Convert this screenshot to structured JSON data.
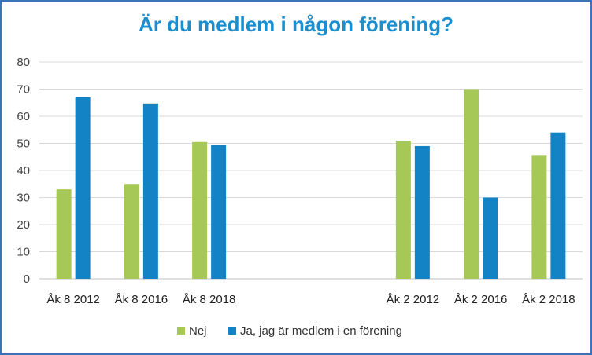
{
  "chart_data": {
    "type": "bar",
    "title": "Är du medlem i någon förening?",
    "categories": [
      "Åk 8 2012",
      "Åk 8 2016",
      "Åk 8 2018",
      "",
      "",
      "Åk 2 2012",
      "Åk 2 2016",
      "Åk 2 2018"
    ],
    "series": [
      {
        "name": "Nej",
        "color": "#a6c856",
        "values": [
          33,
          35,
          50.5,
          null,
          null,
          51,
          70,
          45.7
        ]
      },
      {
        "name": "Ja, jag är medlem i en förening",
        "color": "#1383c6",
        "values": [
          67,
          64.7,
          49.5,
          null,
          null,
          49,
          30,
          54
        ]
      }
    ],
    "yticks": [
      0,
      10,
      20,
      30,
      40,
      50,
      60,
      70,
      80
    ],
    "ylim": [
      0,
      80
    ],
    "grid": true,
    "legend_position": "bottom"
  }
}
